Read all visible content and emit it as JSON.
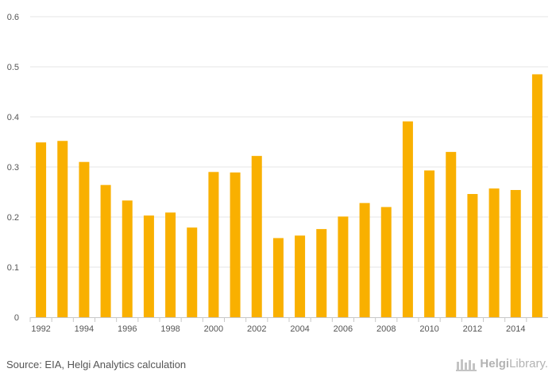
{
  "chart_data": {
    "type": "bar",
    "title": "",
    "xlabel": "",
    "ylabel": "",
    "ylim": [
      0,
      0.6
    ],
    "yticks": [
      "0",
      "0.1",
      "0.2",
      "0.3",
      "0.4",
      "0.5",
      "0.6"
    ],
    "grid": true,
    "bar_color": "#F9B000",
    "categories": [
      "1992",
      "1993",
      "1994",
      "1995",
      "1996",
      "1997",
      "1998",
      "1999",
      "2000",
      "2001",
      "2002",
      "2003",
      "2004",
      "2005",
      "2006",
      "2007",
      "2008",
      "2009",
      "2010",
      "2011",
      "2012",
      "2013",
      "2014",
      "2015"
    ],
    "xtick_labels": [
      "1992",
      "",
      "1994",
      "",
      "1996",
      "",
      "1998",
      "",
      "2000",
      "",
      "2002",
      "",
      "2004",
      "",
      "2006",
      "",
      "2008",
      "",
      "2010",
      "",
      "2012",
      "",
      "2014",
      ""
    ],
    "values": [
      0.349,
      0.352,
      0.31,
      0.264,
      0.233,
      0.203,
      0.209,
      0.179,
      0.29,
      0.289,
      0.322,
      0.158,
      0.163,
      0.176,
      0.201,
      0.228,
      0.22,
      0.391,
      0.293,
      0.33,
      0.246,
      0.257,
      0.254,
      0.485
    ]
  },
  "footer": {
    "source": "Source: EIA, Helgi Analytics calculation",
    "logo_main": "Helgi",
    "logo_rest": "Library."
  }
}
